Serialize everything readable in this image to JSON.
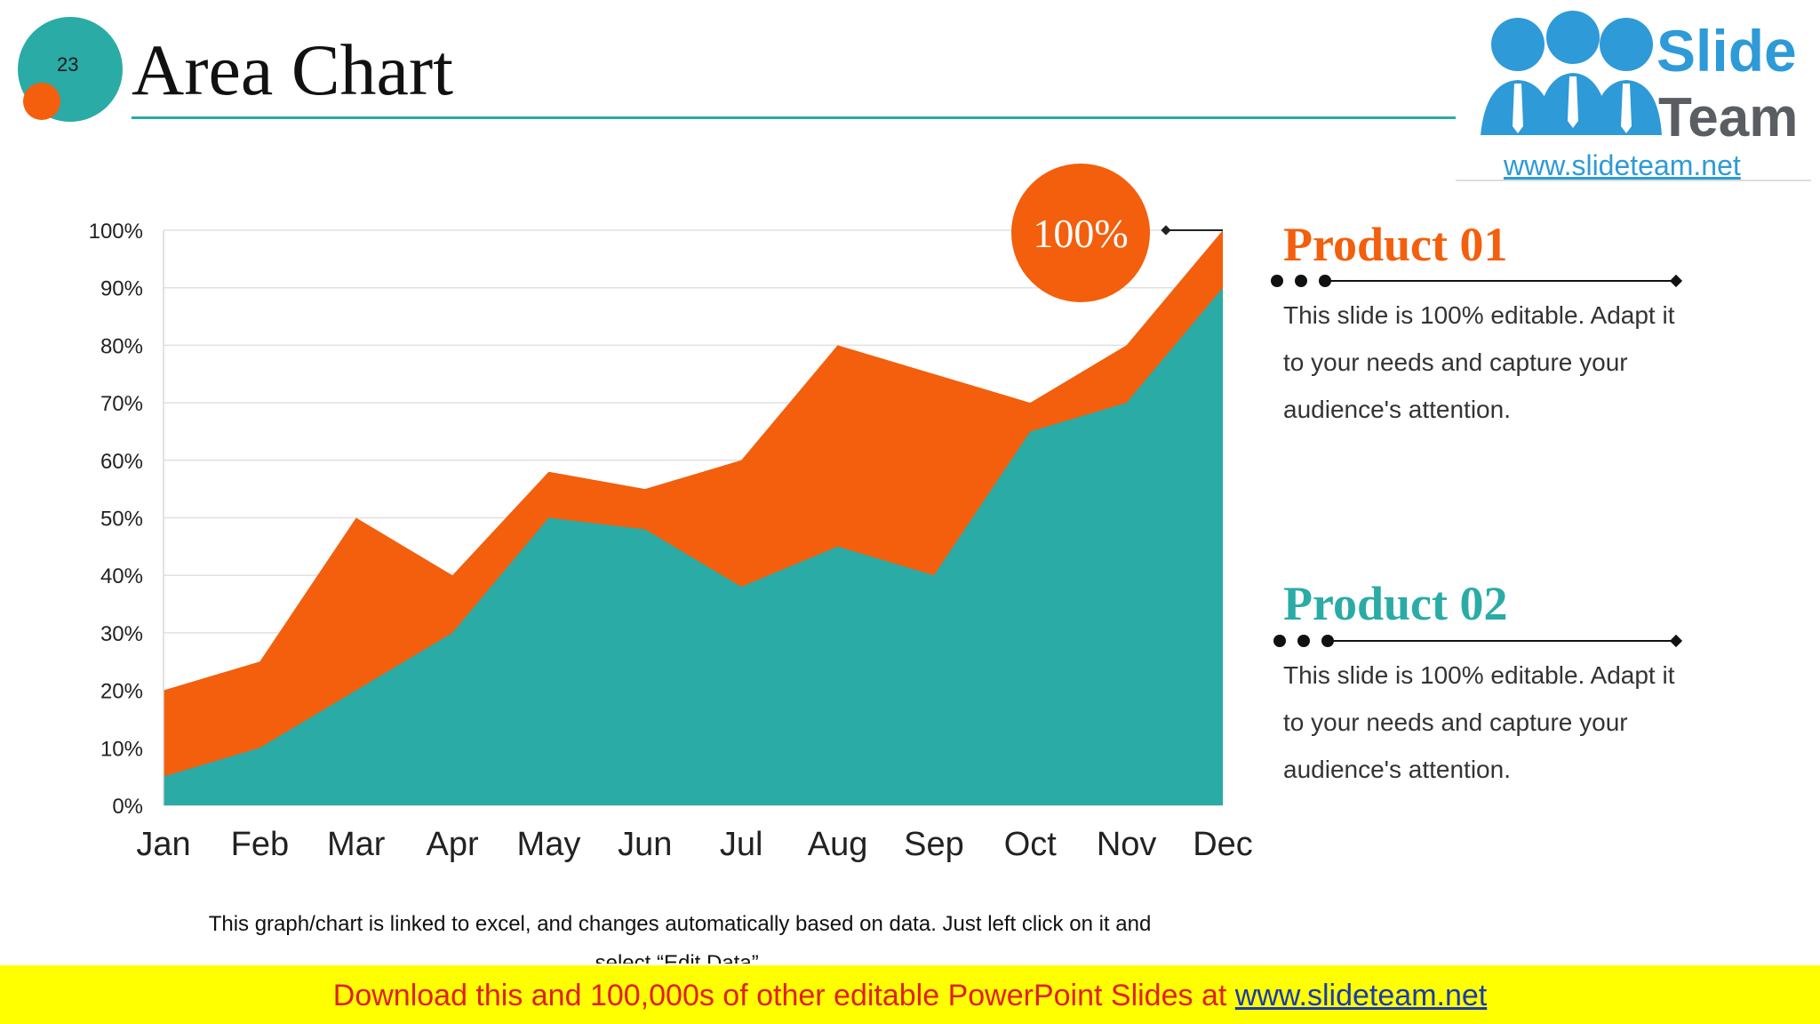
{
  "slide": {
    "number": "23",
    "title": "Area Chart"
  },
  "logo": {
    "line1": "Slide",
    "line2": "Team",
    "url": "www.slideteam.net"
  },
  "callout": {
    "label": "100%"
  },
  "products": [
    {
      "title": "Product 01",
      "color": "#f35f0c",
      "description": "This slide is 100% editable. Adapt it to your needs and capture your audience's attention."
    },
    {
      "title": "Product 02",
      "color": "#2aaba6",
      "description": "This slide is 100% editable. Adapt it to your needs and capture your audience's attention."
    }
  ],
  "note": "This graph/chart is linked to excel, and changes automatically based on data. Just left click on it and select “Edit Data”.",
  "banner": {
    "text": "Download this and 100,000s of other editable PowerPoint Slides at ",
    "link": "www.slideteam.net"
  },
  "chart_data": {
    "type": "area",
    "stacked": false,
    "categories": [
      "Jan",
      "Feb",
      "Mar",
      "Apr",
      "May",
      "Jun",
      "Jul",
      "Aug",
      "Sep",
      "Oct",
      "Nov",
      "Dec"
    ],
    "series": [
      {
        "color": "#f35f0c",
        "values": [
          20,
          25,
          50,
          40,
          58,
          55,
          60,
          80,
          75,
          70,
          80,
          100
        ]
      },
      {
        "color": "#2aaba6",
        "values": [
          5,
          10,
          20,
          30,
          50,
          48,
          38,
          45,
          40,
          65,
          70,
          90
        ]
      }
    ],
    "ylim": [
      0,
      100
    ],
    "yticks": [
      "0%",
      "10%",
      "20%",
      "30%",
      "40%",
      "50%",
      "60%",
      "70%",
      "80%",
      "90%",
      "100%"
    ],
    "grid": true
  }
}
